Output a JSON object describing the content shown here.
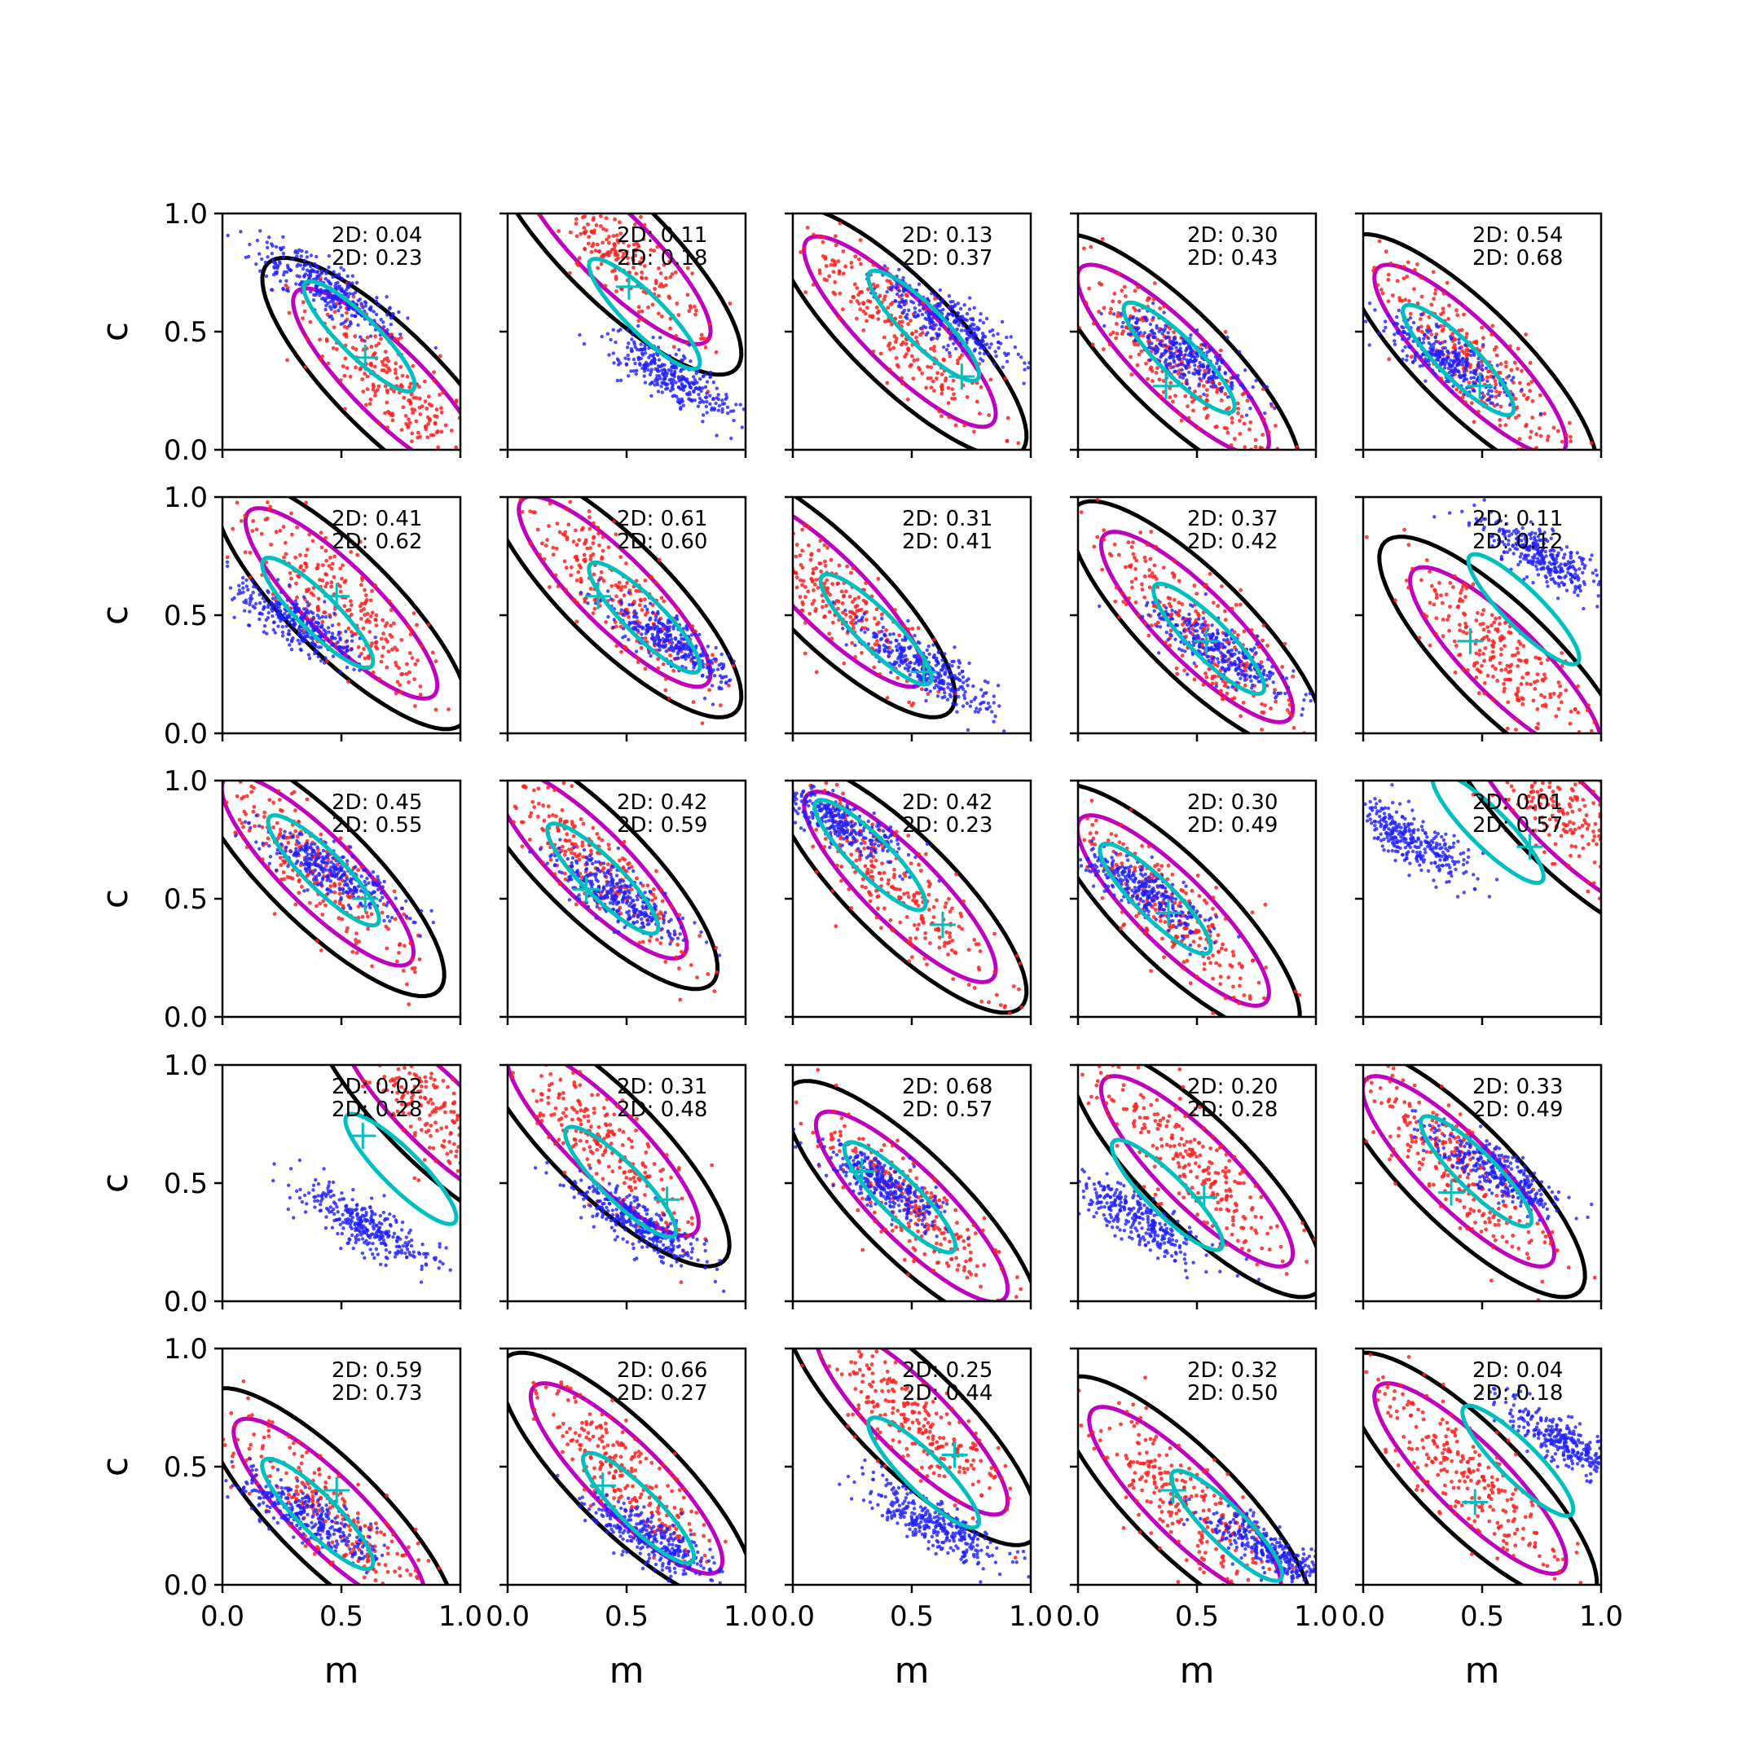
{
  "colors": {
    "posterior_a": "#1f1fff",
    "posterior_b": "#ff2020",
    "contour_outer": "#000000",
    "contour_b": "#bf00bf",
    "contour_c": "#00bfbf",
    "marker": "#00bfbf"
  },
  "axes": {
    "xlabel": "m",
    "ylabel": "c",
    "xlim": [
      0,
      1
    ],
    "ylim": [
      0,
      1
    ],
    "x_ticks": [
      "0.0",
      "0.5",
      "1.0"
    ],
    "y_ticks": [
      "0.0",
      "0.5",
      "1.0"
    ]
  },
  "chart_data": {
    "type": "scatter",
    "grid": "5x5 small multiples",
    "xlabel": "m",
    "ylabel": "c",
    "xlim": [
      0,
      1
    ],
    "ylim": [
      0,
      1
    ],
    "panels": [
      {
        "stats": [
          "2D: 0.04",
          "2D: 0.23"
        ],
        "blue_center": [
          0.45,
          0.68
        ],
        "red_center": [
          0.7,
          0.28
        ],
        "marker": [
          0.6,
          0.39
        ]
      },
      {
        "stats": [
          "2D: 0.11",
          "2D: 0.18"
        ],
        "blue_center": [
          0.7,
          0.3
        ],
        "red_center": [
          0.45,
          0.85
        ],
        "marker": [
          0.51,
          0.69
        ]
      },
      {
        "stats": [
          "2D: 0.13",
          "2D: 0.37"
        ],
        "blue_center": [
          0.65,
          0.55
        ],
        "red_center": [
          0.45,
          0.5
        ],
        "marker": [
          0.71,
          0.31
        ]
      },
      {
        "stats": [
          "2D: 0.30",
          "2D: 0.43"
        ],
        "blue_center": [
          0.45,
          0.4
        ],
        "red_center": [
          0.4,
          0.38
        ],
        "marker": [
          0.37,
          0.27
        ]
      },
      {
        "stats": [
          "2D: 0.54",
          "2D: 0.68"
        ],
        "blue_center": [
          0.35,
          0.38
        ],
        "red_center": [
          0.45,
          0.38
        ],
        "marker": [
          0.49,
          0.27
        ]
      },
      {
        "stats": [
          "2D: 0.41",
          "2D: 0.62"
        ],
        "blue_center": [
          0.3,
          0.47
        ],
        "red_center": [
          0.5,
          0.55
        ],
        "marker": [
          0.48,
          0.58
        ]
      },
      {
        "stats": [
          "2D: 0.61",
          "2D: 0.60"
        ],
        "blue_center": [
          0.7,
          0.38
        ],
        "red_center": [
          0.45,
          0.6
        ],
        "marker": [
          0.38,
          0.58
        ]
      },
      {
        "stats": [
          "2D: 0.31",
          "2D: 0.41"
        ],
        "blue_center": [
          0.55,
          0.28
        ],
        "red_center": [
          0.15,
          0.6
        ],
        "marker": [
          0.55,
          0.26
        ]
      },
      {
        "stats": [
          "2D: 0.37",
          "2D: 0.42"
        ],
        "blue_center": [
          0.6,
          0.35
        ],
        "red_center": [
          0.5,
          0.45
        ],
        "marker": [
          0.54,
          0.39
        ]
      },
      {
        "stats": [
          "2D: 0.11",
          "2D: 0.12"
        ],
        "blue_center": [
          0.75,
          0.75
        ],
        "red_center": [
          0.6,
          0.3
        ],
        "marker": [
          0.45,
          0.39
        ]
      },
      {
        "stats": [
          "2D: 0.45",
          "2D: 0.55"
        ],
        "blue_center": [
          0.45,
          0.62
        ],
        "red_center": [
          0.4,
          0.62
        ],
        "marker": [
          0.6,
          0.5
        ]
      },
      {
        "stats": [
          "2D: 0.42",
          "2D: 0.59"
        ],
        "blue_center": [
          0.45,
          0.52
        ],
        "red_center": [
          0.35,
          0.65
        ],
        "marker": [
          0.33,
          0.54
        ]
      },
      {
        "stats": [
          "2D: 0.42",
          "2D: 0.23"
        ],
        "blue_center": [
          0.2,
          0.82
        ],
        "red_center": [
          0.45,
          0.55
        ],
        "marker": [
          0.63,
          0.39
        ]
      },
      {
        "stats": [
          "2D: 0.30",
          "2D: 0.49"
        ],
        "blue_center": [
          0.25,
          0.55
        ],
        "red_center": [
          0.4,
          0.45
        ],
        "marker": [
          0.38,
          0.44
        ]
      },
      {
        "stats": [
          "2D: 0.01",
          "2D: 0.57"
        ],
        "blue_center": [
          0.2,
          0.75
        ],
        "red_center": [
          0.85,
          0.85
        ],
        "marker": [
          0.7,
          0.72
        ]
      },
      {
        "stats": [
          "2D: 0.02",
          "2D: 0.28"
        ],
        "blue_center": [
          0.6,
          0.32
        ],
        "red_center": [
          0.9,
          0.8
        ],
        "marker": [
          0.59,
          0.7
        ]
      },
      {
        "stats": [
          "2D: 0.31",
          "2D: 0.48"
        ],
        "blue_center": [
          0.55,
          0.33
        ],
        "red_center": [
          0.4,
          0.68
        ],
        "marker": [
          0.67,
          0.43
        ]
      },
      {
        "stats": [
          "2D: 0.68",
          "2D: 0.57"
        ],
        "blue_center": [
          0.4,
          0.48
        ],
        "red_center": [
          0.5,
          0.4
        ],
        "marker": [
          0.29,
          0.55
        ]
      },
      {
        "stats": [
          "2D: 0.20",
          "2D: 0.28"
        ],
        "blue_center": [
          0.25,
          0.35
        ],
        "red_center": [
          0.5,
          0.55
        ],
        "marker": [
          0.53,
          0.44
        ]
      },
      {
        "stats": [
          "2D: 0.33",
          "2D: 0.49"
        ],
        "blue_center": [
          0.55,
          0.55
        ],
        "red_center": [
          0.4,
          0.55
        ],
        "marker": [
          0.37,
          0.46
        ]
      },
      {
        "stats": [
          "2D: 0.59",
          "2D: 0.73"
        ],
        "blue_center": [
          0.35,
          0.3
        ],
        "red_center": [
          0.45,
          0.3
        ],
        "marker": [
          0.48,
          0.4
        ]
      },
      {
        "stats": [
          "2D: 0.66",
          "2D: 0.27"
        ],
        "blue_center": [
          0.6,
          0.2
        ],
        "red_center": [
          0.5,
          0.45
        ],
        "marker": [
          0.4,
          0.42
        ]
      },
      {
        "stats": [
          "2D: 0.25",
          "2D: 0.44"
        ],
        "blue_center": [
          0.6,
          0.25
        ],
        "red_center": [
          0.5,
          0.7
        ],
        "marker": [
          0.68,
          0.55
        ]
      },
      {
        "stats": [
          "2D: 0.32",
          "2D: 0.50"
        ],
        "blue_center": [
          0.8,
          0.15
        ],
        "red_center": [
          0.45,
          0.35
        ],
        "marker": [
          0.4,
          0.4
        ]
      },
      {
        "stats": [
          "2D: 0.04",
          "2D: 0.18"
        ],
        "blue_center": [
          0.85,
          0.6
        ],
        "red_center": [
          0.45,
          0.45
        ],
        "marker": [
          0.47,
          0.35
        ]
      }
    ]
  }
}
